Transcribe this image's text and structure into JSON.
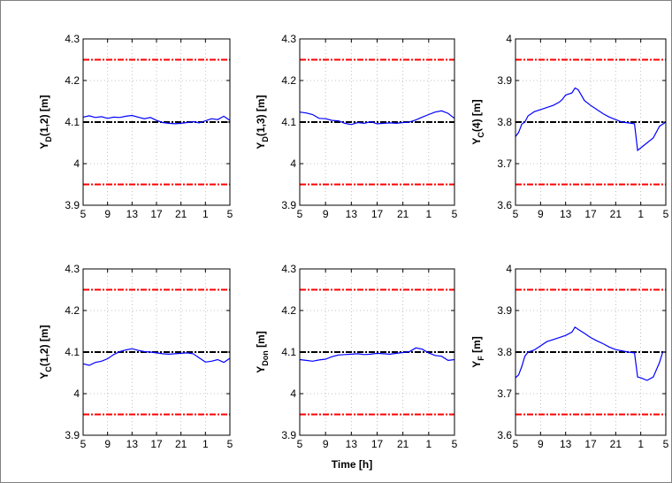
{
  "chart_data": [
    {
      "type": "line",
      "ylabel_main": "Y",
      "ylabel_sub": "D",
      "ylabel_rest": "(1,2) [m]",
      "ylim": [
        3.9,
        4.3
      ],
      "yticks": [
        "3.9",
        "4",
        "4.1",
        "4.2",
        "4.3"
      ],
      "xticks": [
        "5",
        "9",
        "13",
        "17",
        "21",
        "1",
        "5"
      ],
      "upper": 4.25,
      "lower": 3.95,
      "reference": 4.1,
      "series": [
        {
          "x": [
            0,
            1,
            2,
            3,
            4,
            5,
            6,
            7,
            8,
            9,
            10,
            11,
            12,
            13,
            14,
            15,
            16,
            17,
            18,
            19,
            20,
            21,
            22,
            23,
            24
          ],
          "values": [
            4.112,
            4.115,
            4.111,
            4.113,
            4.109,
            4.112,
            4.111,
            4.114,
            4.116,
            4.112,
            4.108,
            4.111,
            4.104,
            4.099,
            4.097,
            4.096,
            4.097,
            4.099,
            4.101,
            4.098,
            4.103,
            4.108,
            4.106,
            4.114,
            4.104
          ]
        }
      ]
    },
    {
      "type": "line",
      "ylabel_main": "Y",
      "ylabel_sub": "D",
      "ylabel_rest": "(1,3) [m]",
      "ylim": [
        3.9,
        4.3
      ],
      "yticks": [
        "3.9",
        "4",
        "4.1",
        "4.2",
        "4.3"
      ],
      "xticks": [
        "5",
        "9",
        "13",
        "17",
        "21",
        "1",
        "5"
      ],
      "upper": 4.25,
      "lower": 3.95,
      "reference": 4.1,
      "series": [
        {
          "x": [
            0,
            1,
            2,
            3,
            4,
            5,
            6,
            7,
            8,
            9,
            10,
            11,
            12,
            13,
            14,
            15,
            16,
            17,
            18,
            19,
            20,
            21,
            22,
            23,
            24
          ],
          "values": [
            4.124,
            4.122,
            4.118,
            4.109,
            4.108,
            4.104,
            4.103,
            4.097,
            4.094,
            4.099,
            4.097,
            4.101,
            4.096,
            4.097,
            4.098,
            4.097,
            4.099,
            4.1,
            4.105,
            4.112,
            4.118,
            4.124,
            4.127,
            4.121,
            4.109
          ]
        }
      ]
    },
    {
      "type": "line",
      "ylabel_main": "Y",
      "ylabel_sub": "C",
      "ylabel_rest": "(4) [m]",
      "ylim": [
        3.6,
        4.0
      ],
      "yticks": [
        "3.6",
        "3.7",
        "3.8",
        "3.9",
        "4"
      ],
      "xticks": [
        "5",
        "9",
        "13",
        "17",
        "21",
        "1",
        "5"
      ],
      "upper": 3.95,
      "lower": 3.65,
      "reference": 3.8,
      "series": [
        {
          "x": [
            0,
            0.5,
            1,
            1.5,
            2,
            3,
            4,
            5,
            6,
            7,
            7.5,
            8,
            9,
            9.5,
            10,
            10.5,
            11,
            12,
            13,
            14,
            15,
            16,
            17,
            18,
            19,
            19.5,
            20,
            21,
            22,
            23,
            24
          ],
          "values": [
            3.765,
            3.775,
            3.795,
            3.8,
            3.815,
            3.825,
            3.83,
            3.835,
            3.84,
            3.848,
            3.855,
            3.865,
            3.87,
            3.882,
            3.878,
            3.865,
            3.852,
            3.84,
            3.83,
            3.82,
            3.812,
            3.806,
            3.8,
            3.798,
            3.796,
            3.732,
            3.738,
            3.75,
            3.762,
            3.79,
            3.8
          ]
        }
      ]
    },
    {
      "type": "line",
      "ylabel_main": "Y",
      "ylabel_sub": "C",
      "ylabel_rest": "(1,2) [m]",
      "ylim": [
        3.9,
        4.3
      ],
      "yticks": [
        "3.9",
        "4",
        "4.1",
        "4.2",
        "4.3"
      ],
      "xticks": [
        "5",
        "9",
        "13",
        "17",
        "21",
        "1",
        "5"
      ],
      "upper": 4.25,
      "lower": 3.95,
      "reference": 4.1,
      "series": [
        {
          "x": [
            0,
            1,
            2,
            3,
            4,
            5,
            6,
            7,
            8,
            9,
            10,
            11,
            12,
            13,
            14,
            15,
            16,
            17,
            18,
            19,
            20,
            21,
            22,
            23,
            24
          ],
          "values": [
            4.072,
            4.068,
            4.075,
            4.078,
            4.084,
            4.094,
            4.101,
            4.105,
            4.108,
            4.104,
            4.101,
            4.1,
            4.098,
            4.096,
            4.095,
            4.096,
            4.097,
            4.098,
            4.096,
            4.086,
            4.076,
            4.078,
            4.082,
            4.075,
            4.085
          ]
        }
      ]
    },
    {
      "type": "line",
      "ylabel_main": "Y",
      "ylabel_sub": "Don",
      "ylabel_rest": " [m]",
      "ylim": [
        3.9,
        4.3
      ],
      "yticks": [
        "3.9",
        "4",
        "4.1",
        "4.2",
        "4.3"
      ],
      "xticks": [
        "5",
        "9",
        "13",
        "17",
        "21",
        "1",
        "5"
      ],
      "upper": 4.25,
      "lower": 3.95,
      "reference": 4.1,
      "series": [
        {
          "x": [
            0,
            1,
            2,
            3,
            4,
            5,
            6,
            7,
            8,
            9,
            10,
            11,
            12,
            13,
            14,
            15,
            16,
            17,
            18,
            19,
            20,
            21,
            22,
            23,
            24
          ],
          "values": [
            4.082,
            4.08,
            4.078,
            4.081,
            4.083,
            4.089,
            4.093,
            4.094,
            4.095,
            4.096,
            4.094,
            4.095,
            4.097,
            4.096,
            4.095,
            4.097,
            4.099,
            4.101,
            4.11,
            4.107,
            4.098,
            4.092,
            4.09,
            4.08,
            4.082
          ]
        }
      ]
    },
    {
      "type": "line",
      "ylabel_main": "Y",
      "ylabel_sub": "F",
      "ylabel_rest": " [m]",
      "ylim": [
        3.6,
        4.0
      ],
      "yticks": [
        "3.6",
        "3.7",
        "3.8",
        "3.9",
        "4"
      ],
      "xticks": [
        "5",
        "9",
        "13",
        "17",
        "21",
        "1",
        "5"
      ],
      "upper": 3.95,
      "lower": 3.65,
      "reference": 3.8,
      "series": [
        {
          "x": [
            0,
            0.5,
            1,
            1.5,
            2,
            3,
            4,
            5,
            6,
            7,
            8,
            9,
            9.5,
            10,
            11,
            12,
            13,
            14,
            15,
            16,
            17,
            18,
            19,
            19.5,
            20,
            21,
            22,
            23,
            23.5,
            24
          ],
          "values": [
            3.738,
            3.745,
            3.765,
            3.79,
            3.8,
            3.805,
            3.815,
            3.825,
            3.83,
            3.835,
            3.84,
            3.848,
            3.86,
            3.855,
            3.845,
            3.835,
            3.827,
            3.82,
            3.812,
            3.806,
            3.803,
            3.8,
            3.798,
            3.74,
            3.738,
            3.732,
            3.74,
            3.775,
            3.8,
            3.8
          ]
        }
      ]
    }
  ],
  "common_xlabel": "Time [h]",
  "colors": {
    "series": "#0000ff",
    "limits": "#ff0000",
    "reference": "#000000",
    "grid": "#b0b0b0"
  }
}
